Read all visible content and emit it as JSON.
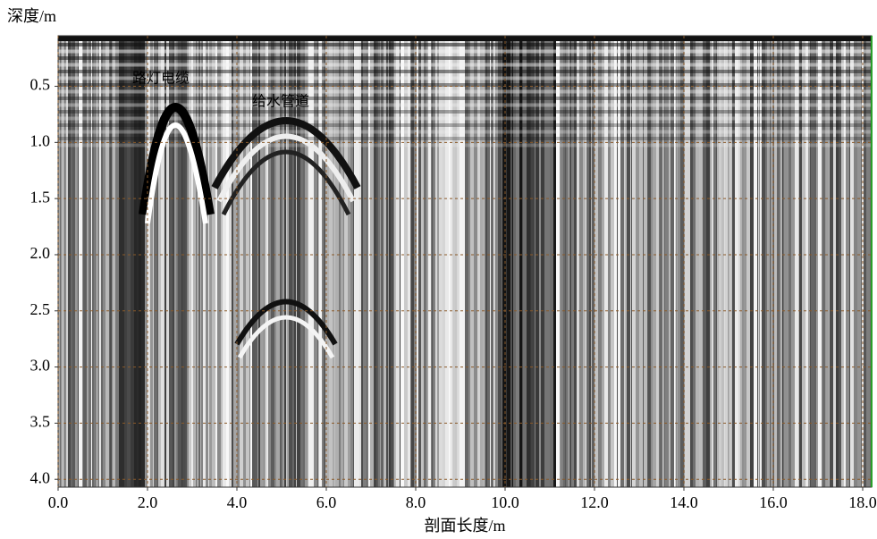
{
  "chart_data": {
    "type": "image",
    "y_label": "深度/m",
    "x_label": "剖面长度/m",
    "annotations": [
      "路灯电缆",
      "给水管道"
    ],
    "xlim": [
      0,
      18.2
    ],
    "ylim": [
      0.05,
      4.07
    ],
    "y_inverted": true,
    "xticks": [
      {
        "value": 0,
        "label": "0.0"
      },
      {
        "value": 2,
        "label": "2.0"
      },
      {
        "value": 4,
        "label": "4.0"
      },
      {
        "value": 6,
        "label": "6.0"
      },
      {
        "value": 8,
        "label": "8.0"
      },
      {
        "value": 10,
        "label": "10.0"
      },
      {
        "value": 12,
        "label": "12.0"
      },
      {
        "value": 14,
        "label": "14.0"
      },
      {
        "value": 16,
        "label": "16.0"
      },
      {
        "value": 18,
        "label": "18.0"
      }
    ],
    "yticks": [
      0.5,
      {
        "value": 1,
        "label": "1.0"
      },
      1.5,
      {
        "value": 2,
        "label": "2.0"
      },
      2.5,
      {
        "value": 3,
        "label": "3.0"
      },
      3.5,
      {
        "value": 4,
        "label": "4.0"
      }
    ],
    "grid": true,
    "grid_color": "#8a5a2a",
    "annotation_color": "#c83232"
  }
}
